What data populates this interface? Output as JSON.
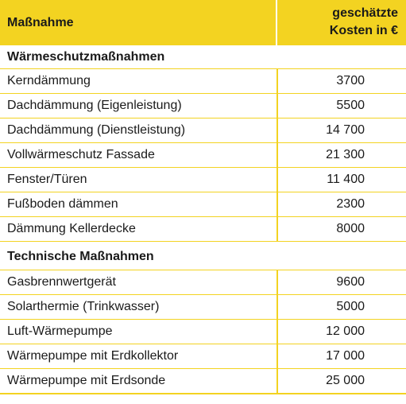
{
  "header": {
    "col1": "Maßnahme",
    "col2_line1": "geschätzte",
    "col2_line2": "Kosten in €"
  },
  "sections": [
    {
      "title": "Wärmeschutzmaßnahmen",
      "rows": [
        {
          "name": "Kerndämmung",
          "cost": "3700"
        },
        {
          "name": "Dachdämmung (Eigenleistung)",
          "cost": "5500"
        },
        {
          "name": "Dachdämmung (Dienstleistung)",
          "cost": "14 700"
        },
        {
          "name": "Vollwärmeschutz Fassade",
          "cost": "21 300"
        },
        {
          "name": "Fenster/Türen",
          "cost": "11 400"
        },
        {
          "name": "Fußboden dämmen",
          "cost": "2300"
        },
        {
          "name": "Dämmung Kellerdecke",
          "cost": "8000"
        }
      ]
    },
    {
      "title": "Technische Maßnahmen",
      "rows": [
        {
          "name": "Gasbrennwertgerät",
          "cost": "9600"
        },
        {
          "name": "Solarthermie (Trinkwasser)",
          "cost": "5000"
        },
        {
          "name": "Luft-Wärmepumpe",
          "cost": "12 000"
        },
        {
          "name": "Wärmepumpe mit Erdkollektor",
          "cost": "17 000"
        },
        {
          "name": "Wärmepumpe mit Erdsonde",
          "cost": "25 000"
        }
      ]
    }
  ]
}
